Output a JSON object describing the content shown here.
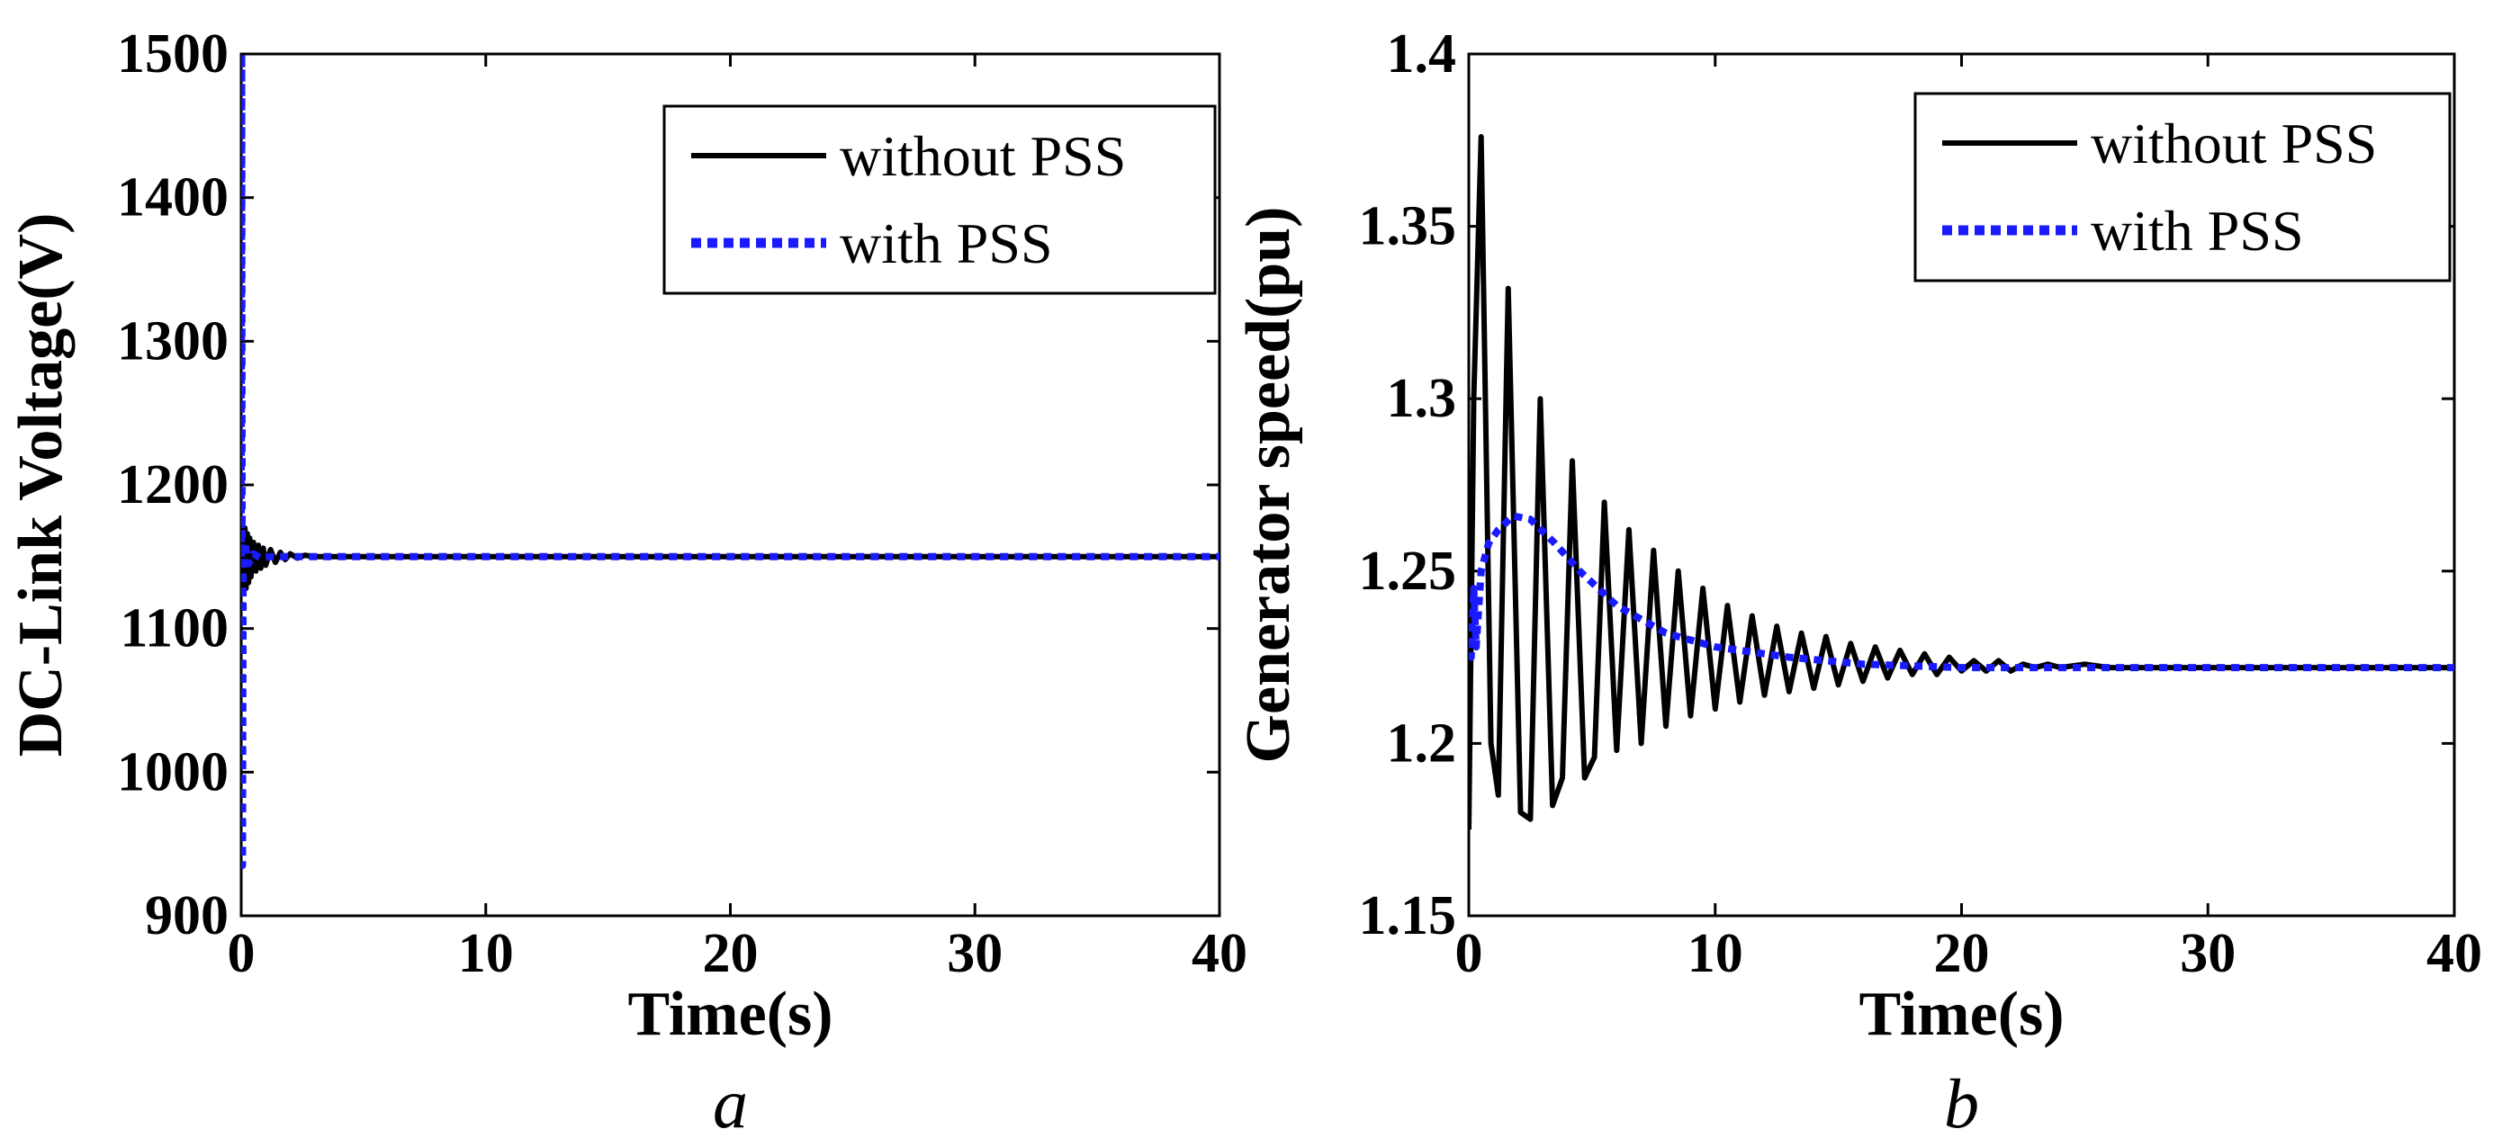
{
  "colors": {
    "without": "#000000",
    "with": "#1a1aff",
    "frame": "#000000",
    "background": "#ffffff"
  },
  "chart_data": [
    {
      "type": "line",
      "panel_letter": "a",
      "title": "",
      "xlabel": "Time(s)",
      "ylabel": "DC-Link Voltage(V)",
      "xlim": [
        0,
        40
      ],
      "ylim": [
        900,
        1500
      ],
      "xticks": [
        0,
        10,
        20,
        30,
        40
      ],
      "yticks": [
        900,
        1000,
        1100,
        1200,
        1300,
        1400,
        1500
      ],
      "xtick_labels": [
        "0",
        "10",
        "20",
        "30",
        "40"
      ],
      "ytick_labels": [
        "900",
        "1000",
        "1100",
        "1200",
        "1300",
        "1400",
        "1500"
      ],
      "grid": false,
      "legend_position": "top-right",
      "series": [
        {
          "name": "without PSS",
          "style": "solid",
          "steady": 1150,
          "points": [
            [
              0,
              1150
            ],
            [
              0.05,
              1175
            ],
            [
              0.1,
              1125
            ],
            [
              0.15,
              1170
            ],
            [
              0.2,
              1128
            ],
            [
              0.25,
              1166
            ],
            [
              0.3,
              1132
            ],
            [
              0.35,
              1163
            ],
            [
              0.4,
              1136
            ],
            [
              0.5,
              1160
            ],
            [
              0.6,
              1140
            ],
            [
              0.7,
              1158
            ],
            [
              0.8,
              1142
            ],
            [
              0.9,
              1156
            ],
            [
              1.0,
              1144
            ],
            [
              1.2,
              1155
            ],
            [
              1.4,
              1146
            ],
            [
              1.6,
              1153
            ],
            [
              1.8,
              1148
            ],
            [
              2.0,
              1152
            ],
            [
              2.3,
              1149
            ],
            [
              2.6,
              1151
            ],
            [
              3.0,
              1150
            ],
            [
              40,
              1150
            ]
          ]
        },
        {
          "name": "with PSS",
          "style": "dotted",
          "steady": 1150,
          "points": [
            [
              0,
              1150
            ],
            [
              0.02,
              1500
            ],
            [
              0.05,
              935
            ],
            [
              0.08,
              1150
            ],
            [
              0.15,
              1160
            ],
            [
              0.3,
              1145
            ],
            [
              0.5,
              1152
            ],
            [
              0.8,
              1149
            ],
            [
              1.2,
              1150
            ],
            [
              40,
              1150
            ]
          ]
        }
      ]
    },
    {
      "type": "line",
      "panel_letter": "b",
      "title": "",
      "xlabel": "Time(s)",
      "ylabel": "Generator speed(pu)",
      "xlim": [
        0,
        40
      ],
      "ylim": [
        1.15,
        1.4
      ],
      "xticks": [
        0,
        10,
        20,
        30,
        40
      ],
      "yticks": [
        1.15,
        1.2,
        1.25,
        1.3,
        1.35,
        1.4
      ],
      "xtick_labels": [
        "0",
        "10",
        "20",
        "30",
        "40"
      ],
      "ytick_labels": [
        "1.15",
        "1.2",
        "1.25",
        "1.3",
        "1.35",
        "1.4"
      ],
      "grid": false,
      "legend_position": "top-right",
      "series": [
        {
          "name": "without PSS",
          "style": "solid",
          "steady": 1.222,
          "points": [
            [
              0,
              1.175
            ],
            [
              0.2,
              1.3
            ],
            [
              0.5,
              1.376
            ],
            [
              0.9,
              1.2
            ],
            [
              1.2,
              1.185
            ],
            [
              1.6,
              1.332
            ],
            [
              2.1,
              1.18
            ],
            [
              2.5,
              1.178
            ],
            [
              2.9,
              1.3
            ],
            [
              3.4,
              1.182
            ],
            [
              3.8,
              1.19
            ],
            [
              4.2,
              1.282
            ],
            [
              4.7,
              1.19
            ],
            [
              5.1,
              1.196
            ],
            [
              5.5,
              1.27
            ],
            [
              6.0,
              1.198
            ],
            [
              6.5,
              1.262
            ],
            [
              7.0,
              1.2
            ],
            [
              7.5,
              1.256
            ],
            [
              8.0,
              1.205
            ],
            [
              8.5,
              1.25
            ],
            [
              9.0,
              1.208
            ],
            [
              9.5,
              1.245
            ],
            [
              10.0,
              1.21
            ],
            [
              10.5,
              1.24
            ],
            [
              11.0,
              1.212
            ],
            [
              11.5,
              1.237
            ],
            [
              12.0,
              1.214
            ],
            [
              12.5,
              1.234
            ],
            [
              13.0,
              1.215
            ],
            [
              13.5,
              1.232
            ],
            [
              14.0,
              1.216
            ],
            [
              14.5,
              1.231
            ],
            [
              15.0,
              1.217
            ],
            [
              15.5,
              1.229
            ],
            [
              16.0,
              1.218
            ],
            [
              16.5,
              1.228
            ],
            [
              17.0,
              1.219
            ],
            [
              17.5,
              1.227
            ],
            [
              18.0,
              1.22
            ],
            [
              18.5,
              1.226
            ],
            [
              19.0,
              1.22
            ],
            [
              19.5,
              1.225
            ],
            [
              20.0,
              1.221
            ],
            [
              20.5,
              1.224
            ],
            [
              21.0,
              1.221
            ],
            [
              21.5,
              1.224
            ],
            [
              22.0,
              1.221
            ],
            [
              22.5,
              1.223
            ],
            [
              23.0,
              1.222
            ],
            [
              23.5,
              1.223
            ],
            [
              24.0,
              1.222
            ],
            [
              25.0,
              1.223
            ],
            [
              26.0,
              1.222
            ],
            [
              27.0,
              1.222
            ],
            [
              40.0,
              1.222
            ]
          ]
        },
        {
          "name": "with PSS",
          "style": "dotted",
          "steady": 1.222,
          "points": [
            [
              0,
              1.23
            ],
            [
              0.1,
              1.225
            ],
            [
              0.2,
              1.245
            ],
            [
              0.3,
              1.228
            ],
            [
              0.5,
              1.25
            ],
            [
              0.8,
              1.258
            ],
            [
              1.2,
              1.262
            ],
            [
              1.8,
              1.266
            ],
            [
              2.5,
              1.265
            ],
            [
              3.5,
              1.258
            ],
            [
              4.5,
              1.25
            ],
            [
              6,
              1.24
            ],
            [
              8,
              1.232
            ],
            [
              10,
              1.228
            ],
            [
              13,
              1.225
            ],
            [
              16,
              1.223
            ],
            [
              20,
              1.222
            ],
            [
              40,
              1.222
            ]
          ]
        }
      ]
    }
  ]
}
